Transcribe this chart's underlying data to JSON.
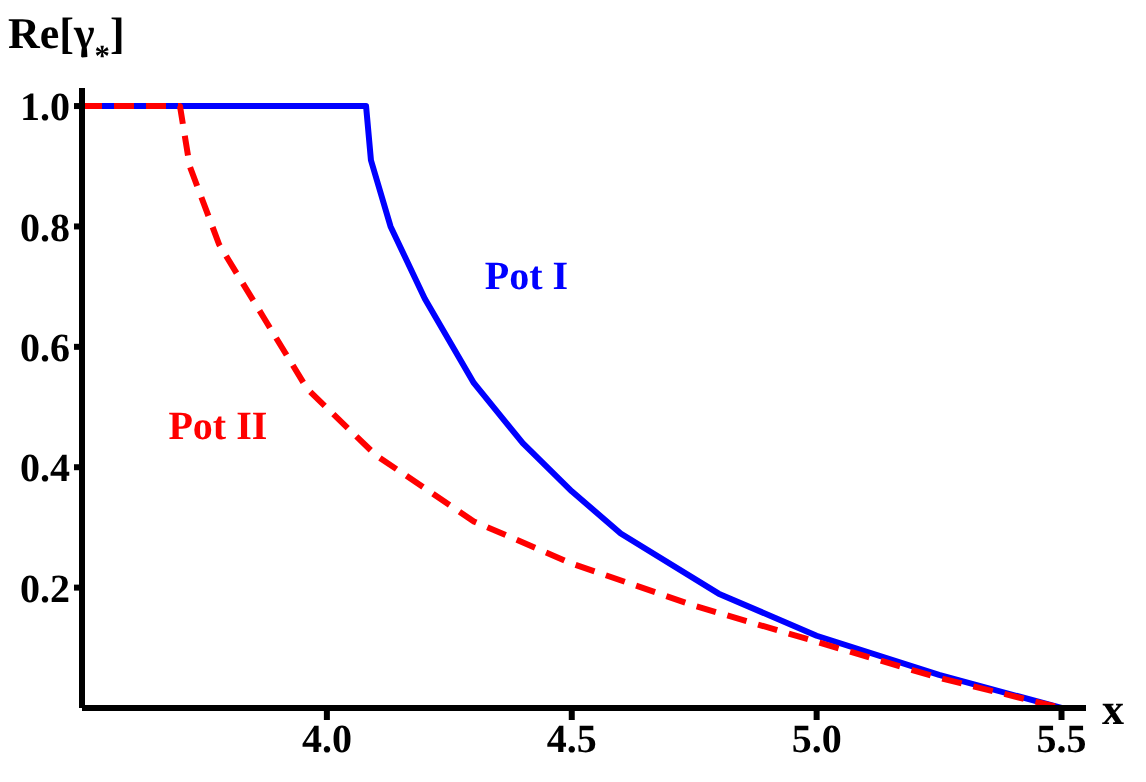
{
  "chart_data": {
    "type": "line",
    "xlabel": "x",
    "ylabel": "Re[γ$_{*}$]",
    "xlim": [
      3.5,
      5.55
    ],
    "ylim": [
      0,
      1.03
    ],
    "xticks": [
      {
        "value": 4,
        "label": "4.0"
      },
      {
        "value": 4.5,
        "label": "4.5"
      },
      {
        "value": 5,
        "label": "5.0"
      },
      {
        "value": 5.5,
        "label": "5.5"
      }
    ],
    "yticks": [
      0.2,
      0.4,
      0.6,
      0.8,
      {
        "value": 1,
        "label": "1.0"
      }
    ],
    "grid": false,
    "legend": false,
    "marker": "none",
    "series": [
      {
        "name": "Pot I",
        "color": "#0000ff",
        "line_style": "solid",
        "x": [
          3.5,
          4.08,
          4.09,
          4.13,
          4.2,
          4.3,
          4.4,
          4.5,
          4.6,
          4.8,
          5.0,
          5.25,
          5.5
        ],
        "values": [
          1,
          1,
          0.91,
          0.8,
          0.68,
          0.54,
          0.44,
          0.36,
          0.29,
          0.19,
          0.12,
          0.055,
          0
        ]
      },
      {
        "name": "Pot II",
        "color": "#ff0000",
        "line_style": "dashed",
        "x": [
          3.5,
          3.7,
          3.72,
          3.78,
          3.87,
          3.96,
          4.1,
          4.3,
          4.5,
          4.75,
          5.0,
          5.25,
          5.5
        ],
        "values": [
          1,
          1,
          0.9,
          0.77,
          0.65,
          0.53,
          0.42,
          0.31,
          0.24,
          0.17,
          0.11,
          0.05,
          0
        ]
      }
    ]
  }
}
